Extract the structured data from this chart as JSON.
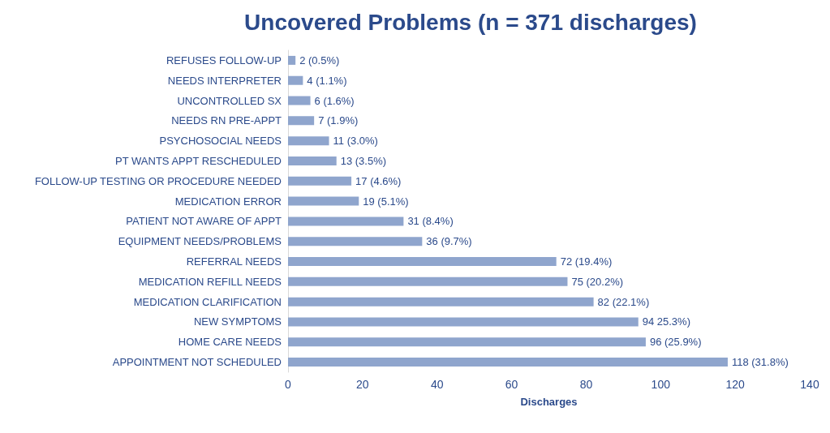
{
  "chart_data": {
    "type": "bar",
    "orientation": "horizontal",
    "title": "Uncovered Problems (n = 371 discharges)",
    "xlabel": "Discharges",
    "categories": [
      "REFUSES FOLLOW-UP",
      "NEEDS INTERPRETER",
      "UNCONTROLLED SX",
      "NEEDS RN PRE-APPT",
      "PSYCHOSOCIAL NEEDS",
      "PT WANTS APPT RESCHEDULED",
      "FOLLOW-UP TESTING OR PROCEDURE NEEDED",
      "MEDICATION ERROR",
      "PATIENT NOT AWARE OF APPT",
      "EQUIPMENT NEEDS/PROBLEMS",
      "REFERRAL NEEDS",
      "MEDICATION REFILL NEEDS",
      "MEDICATION CLARIFICATION",
      "NEW SYMPTOMS",
      "HOME CARE NEEDS",
      "APPOINTMENT NOT SCHEDULED"
    ],
    "values": [
      2,
      4,
      6,
      7,
      11,
      13,
      17,
      19,
      31,
      36,
      72,
      75,
      82,
      94,
      96,
      118
    ],
    "value_labels": [
      "2 (0.5%)",
      "4 (1.1%)",
      "6 (1.6%)",
      "7 (1.9%)",
      "11 (3.0%)",
      "13 (3.5%)",
      "17 (4.6%)",
      "19 (5.1%)",
      "31 (8.4%)",
      "36 (9.7%)",
      "72 (19.4%)",
      "75 (20.2%)",
      "82 (22.1%)",
      "94 25.3%)",
      "96 (25.9%)",
      "118 (31.8%)"
    ],
    "color": "#8fa5cd",
    "xlim": [
      0,
      140
    ],
    "xticks": [
      0,
      20,
      40,
      60,
      80,
      100,
      120,
      140
    ],
    "grid": false
  }
}
